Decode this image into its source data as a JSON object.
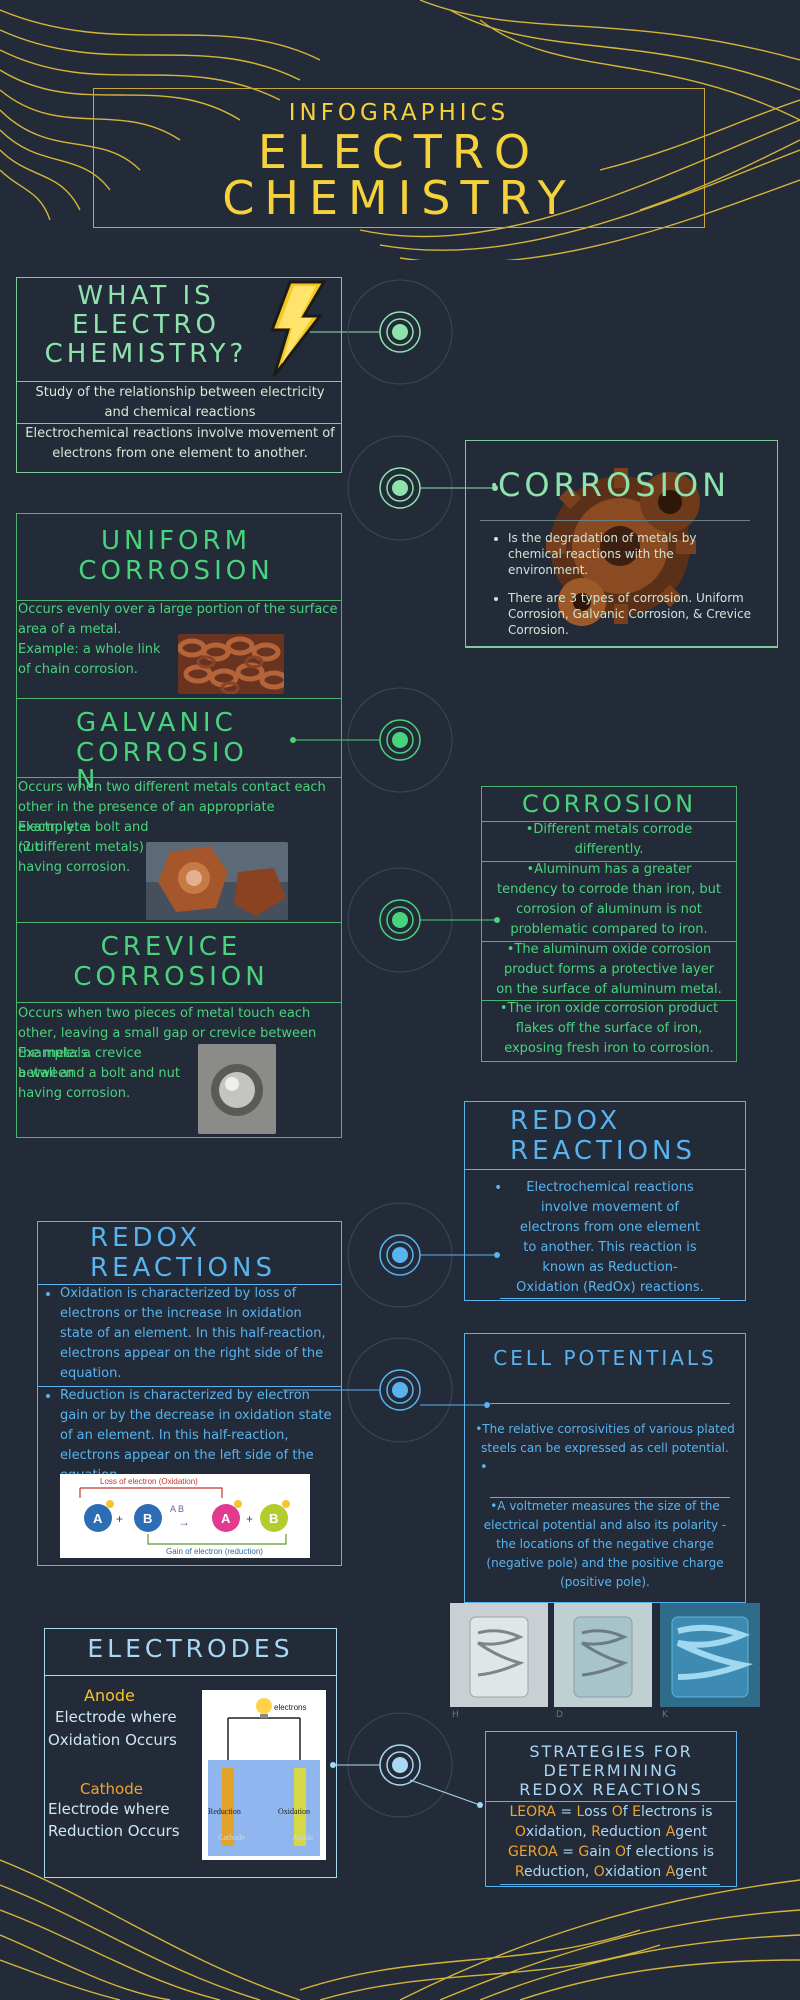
{
  "header": {
    "kicker": "INFOGRAPHICS",
    "title_line1": "ELECTRO",
    "title_line2": "CHEMISTRY"
  },
  "what_is": {
    "title_l1": "WHAT IS",
    "title_l2": "ELECTRO",
    "title_l3": "CHEMISTRY?",
    "text1": "Study of the relationship between electricity and chemical reactions",
    "text2": "Electrochemical reactions involve movement of electrons from one element to another."
  },
  "corrosion_intro": {
    "title": "CORROSION",
    "bullets": [
      "Is the degradation of metals by chemical reactions with the environment.",
      "There are 3 types of corrosion. Uniform Corrosion, Galvanic Corrosion, & Crevice Corrosion."
    ]
  },
  "uniform": {
    "title_l1": "UNIFORM",
    "title_l2": "CORROSION",
    "text": "Occurs evenly over a large portion of the surface area of a metal.",
    "example": "Example: a whole link of chain corrosion."
  },
  "galvanic": {
    "title_l1": "GALVANIC",
    "title_l2": "CORROSIO",
    "title_l3": "N",
    "text": "Occurs when two different metals contact each other in the presence of an appropriate electrolyte.",
    "example1": "Example: a bolt and nut",
    "example2": "(2 different metals)",
    "example3": "having corrosion."
  },
  "crevice": {
    "title_l1": "CREVICE",
    "title_l2": "CORROSION",
    "text": "Occurs when two pieces of metal touch each other, leaving a small gap or crevice between the metals.",
    "example1": "Example: a crevice between",
    "example2": "a wall and a bolt and nut",
    "example3": "having corrosion."
  },
  "corrosion_metals": {
    "title": "CORROSION",
    "items": [
      "•Different metals corrode differently.",
      "•Aluminum has a greater tendency to corrode than iron, but corrosion of aluminum is not problematic compared to iron.",
      "•The aluminum oxide corrosion product forms a protective layer on the surface of aluminum metal.",
      "•The iron oxide corrosion product flakes off the surface of iron, exposing fresh iron to corrosion."
    ]
  },
  "redox_right": {
    "title_l1": "REDOX",
    "title_l2": "REACTIONS",
    "text": "Electrochemical reactions involve movement of electrons from one element to another. This reaction is known as Reduction-Oxidation (RedOx) reactions."
  },
  "redox_left": {
    "title_l1": "REDOX",
    "title_l2": "REACTIONS",
    "bullets": [
      "Oxidation is characterized by loss of electrons or the increase in oxidation state of an element. In this half-reaction, electrons appear on the right side of the equation.",
      "Reduction is characterized by electron gain or by the decrease in oxidation state of an element. In this half-reaction, electrons appear on the left side of the equation."
    ],
    "diagram": {
      "top_label": "Loss of electron (Oxidation)",
      "bottom_label": "Gain of electron (reduction)",
      "a": "A",
      "b": "B",
      "ab": "A  B",
      "plus": "+",
      "arrow": "→"
    }
  },
  "cell_potentials": {
    "title": "CELL POTENTIALS",
    "text1": "•The relative corrosivities of various plated steels can be expressed as cell potential.",
    "bullet_dot": "•",
    "text2": "•A voltmeter measures the size of the electrical potential and also its polarity - the locations of the negative charge (negative pole) and the positive charge (positive pole).",
    "photo_labels": [
      "H",
      "D",
      "K"
    ]
  },
  "electrodes": {
    "title": "ELECTRODES",
    "anode_label": "Anode",
    "anode_text_l1": "Electrode where",
    "anode_text_l2": "Oxidation Occurs",
    "cathode_label": "Cathode",
    "cathode_text_l1": "Electrode where",
    "cathode_text_l2": "Reduction Occurs",
    "diagram": {
      "electrons": "electrons",
      "reduction": "Reduction",
      "oxidation": "Oxidation",
      "cathode": "Cathode",
      "anode": "Anode"
    }
  },
  "strategies": {
    "title_l1": "STRATEGIES FOR",
    "title_l2": "DETERMINING",
    "title_l3": "REDOX REACTIONS",
    "leora": {
      "acronym": "LEORA",
      "eq": " = ",
      "L": "L",
      "oss": "oss ",
      "O": "O",
      "f": "f ",
      "E": "E",
      "lectrons": "lectrons is",
      "O2": "O",
      "xidation": "xidation, ",
      "R": "R",
      "eduction": "eduction ",
      "A": "A",
      "gent": "gent"
    },
    "geroa": {
      "acronym": "GEROA",
      "eq": " = ",
      "G": "G",
      "ain": "ain ",
      "O": "O",
      "f": "f elections is",
      "R": "R",
      "eduction": "eduction, ",
      "O2": "O",
      "xidation": "xidation ",
      "A": "A",
      "gent": "gent"
    }
  },
  "colors": {
    "background": "#232b38",
    "yellow": "#f5d23a",
    "mint": "#8ee3ad",
    "green": "#49d37c",
    "blue": "#58b3ef",
    "orange": "#f0a330"
  }
}
